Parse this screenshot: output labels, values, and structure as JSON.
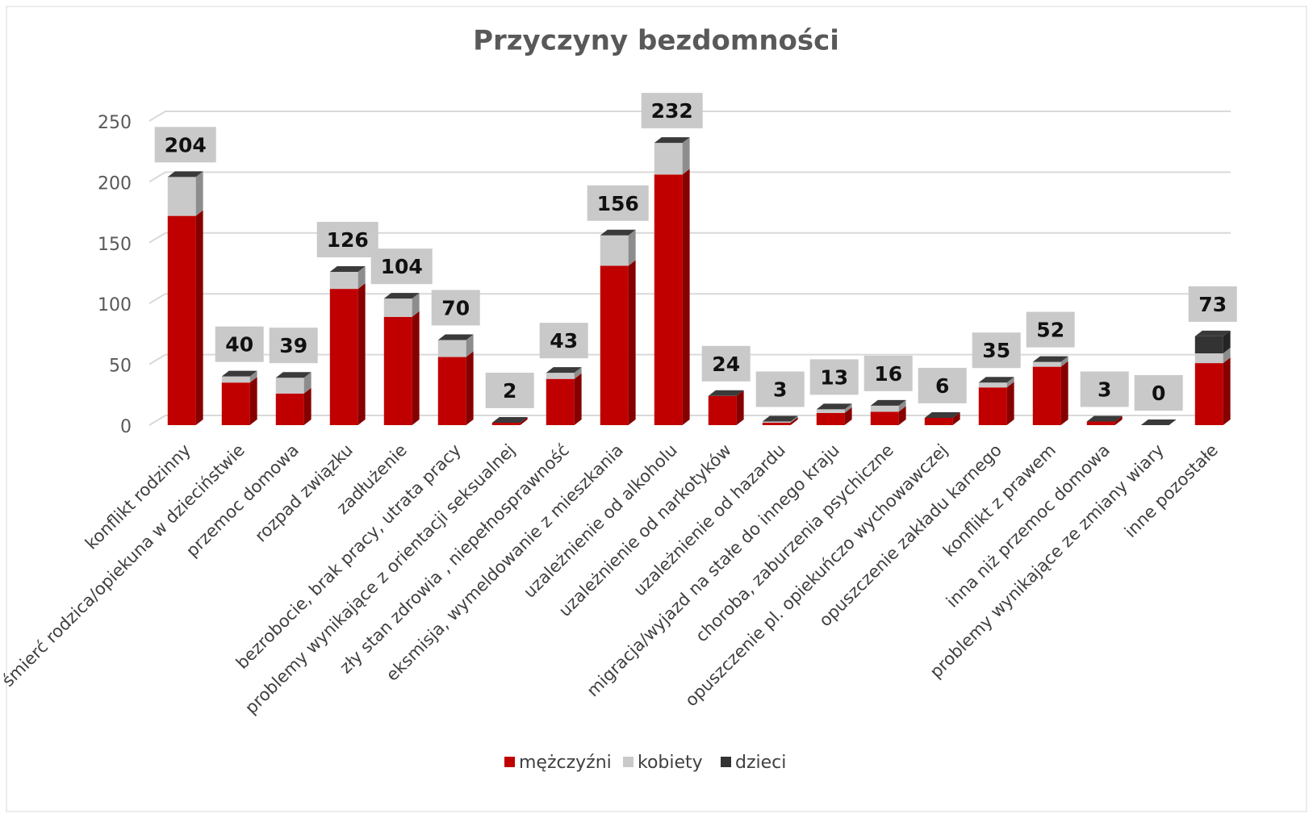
{
  "chart_data": {
    "type": "bar",
    "stacked": true,
    "title": "Przyczyny bezdomności",
    "categories": [
      "konflikt rodzinny",
      "śmierć rodzica/opiekuna w dzieciństwie",
      "przemoc domowa",
      "rozpad związku",
      "zadłużenie",
      "bezrobocie, brak pracy, utrata pracy",
      "problemy wynikające z orientacji seksualnej",
      "zły stan zdrowia , niepełnosprawność",
      "eksmisja, wymeldowanie z mieszkania",
      "uzależnienie od alkoholu",
      "uzależnienie od narkotyków",
      "uzależnienie od hazardu",
      "migracja/wyjazd na stałe do innego kraju",
      "choroba, zaburzenia psychiczne",
      "opuszczenie pl. opiekuńczo wychowawczej",
      "opuszczenie zakładu karnego",
      "konflikt z prawem",
      "inna niż przemoc domowa",
      "problemy wynikające ze zmiany wiary",
      "inne pozostałe"
    ],
    "series": [
      {
        "name": "mężczyźni",
        "color": "#c00000",
        "values": [
          172,
          35,
          26,
          112,
          89,
          56,
          2,
          38,
          131,
          206,
          24,
          2,
          10,
          11,
          6,
          31,
          48,
          3,
          0,
          51
        ]
      },
      {
        "name": "kobiety",
        "color": "#c9c9c9",
        "values": [
          32,
          5,
          13,
          14,
          15,
          14,
          0,
          5,
          25,
          26,
          0,
          1,
          3,
          5,
          0,
          4,
          4,
          0,
          0,
          8
        ]
      },
      {
        "name": "dzieci",
        "color": "#333333",
        "values": [
          0,
          0,
          0,
          0,
          0,
          0,
          0,
          0,
          0,
          0,
          0,
          0,
          0,
          0,
          0,
          0,
          0,
          0,
          0,
          14
        ]
      }
    ],
    "totals": [
      204,
      40,
      39,
      126,
      104,
      70,
      2,
      43,
      156,
      232,
      24,
      3,
      13,
      16,
      6,
      35,
      52,
      3,
      0,
      73
    ],
    "ylim": [
      0,
      250
    ],
    "yticks": [
      0,
      50,
      100,
      150,
      200,
      250
    ],
    "grid": true,
    "legend": "bottom"
  }
}
